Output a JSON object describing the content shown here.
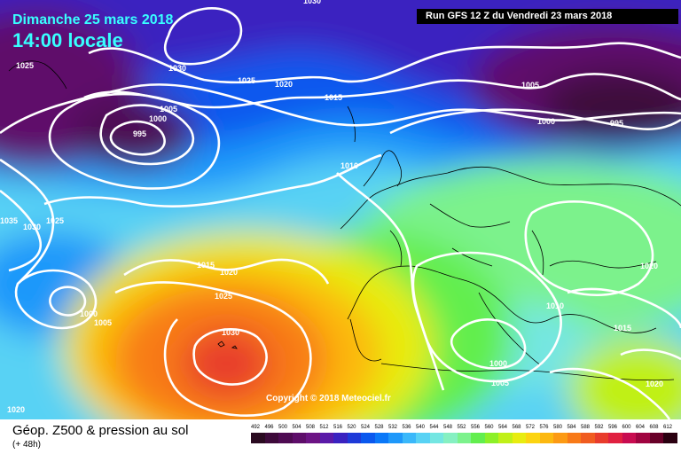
{
  "header": {
    "date": "Dimanche 25 mars 2018",
    "time": "14:00 locale",
    "run": "Run GFS 12 Z du Vendredi 23 mars 2018"
  },
  "copyright": "Copyright © 2018 Meteociel.fr",
  "legend": {
    "title": "Géop. Z500 & pression au sol",
    "subtitle": "(+ 48h)",
    "scale_values": [
      "492",
      "496",
      "500",
      "504",
      "508",
      "512",
      "516",
      "520",
      "524",
      "528",
      "532",
      "536",
      "540",
      "544",
      "548",
      "552",
      "556",
      "560",
      "564",
      "568",
      "572",
      "576",
      "580",
      "584",
      "588",
      "592",
      "596",
      "600",
      "604",
      "608",
      "612"
    ],
    "scale_colors": [
      "#2a0a20",
      "#3d0a3a",
      "#4e0b52",
      "#5e0e6a",
      "#6c1484",
      "#5a1aa8",
      "#3a22c0",
      "#1e3ad8",
      "#0a58ee",
      "#0a78f8",
      "#1e98fa",
      "#3ab8fa",
      "#58d2f4",
      "#74e6e2",
      "#86f0c2",
      "#7cf28c",
      "#62ee4e",
      "#8cf028",
      "#c0f018",
      "#e8ec10",
      "#fcd410",
      "#fcb810",
      "#fc9a14",
      "#f87a18",
      "#f05c20",
      "#e83c2c",
      "#e02040",
      "#c80c50",
      "#a00440",
      "#680028",
      "#2a0010"
    ]
  },
  "isobar_labels": [
    "1030",
    "1025",
    "1030",
    "1025",
    "1020",
    "1015",
    "1005",
    "1000",
    "995",
    "1005",
    "1000",
    "995",
    "1010",
    "1035",
    "1030",
    "1025",
    "1015",
    "1020",
    "1025",
    "1000",
    "1005",
    "1030",
    "1020",
    "1010",
    "1015",
    "1000",
    "1005",
    "1020",
    "1020"
  ]
}
